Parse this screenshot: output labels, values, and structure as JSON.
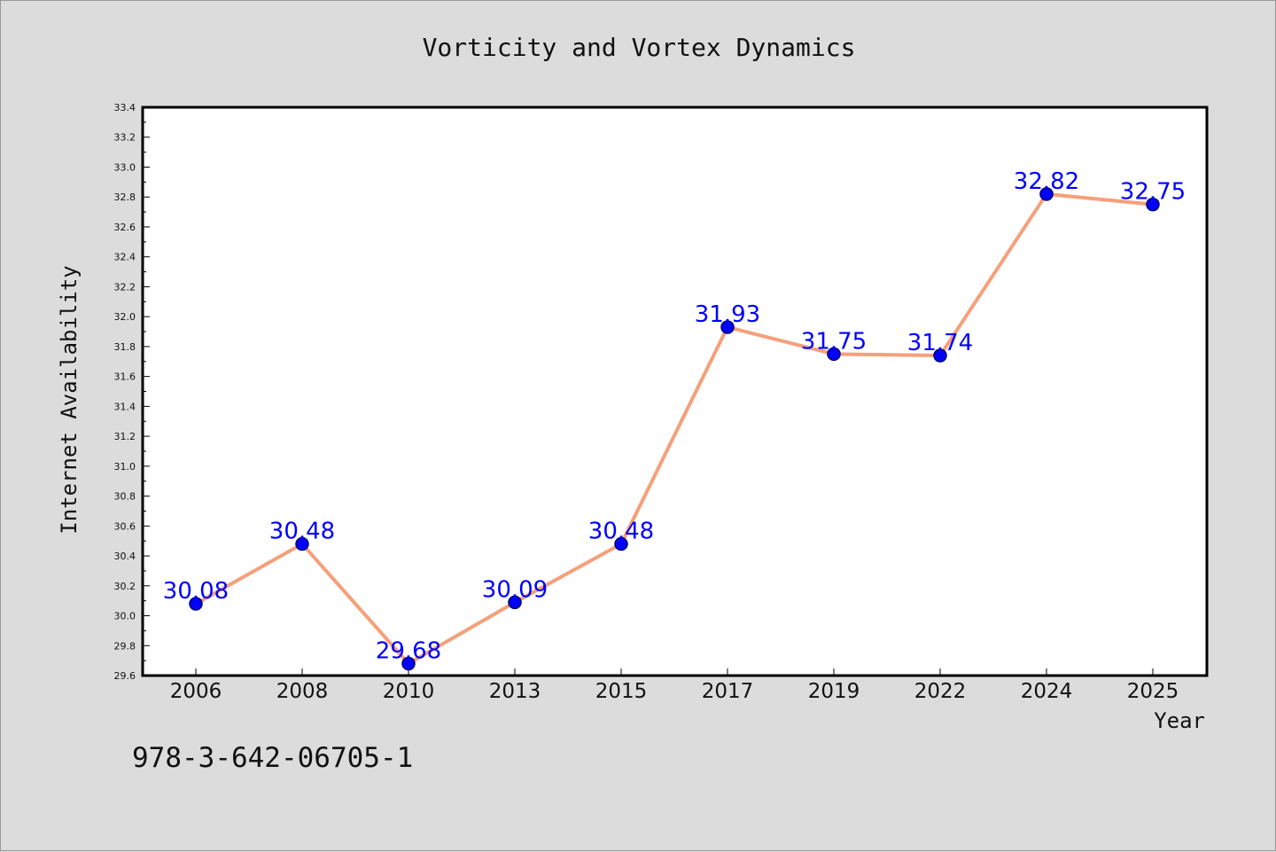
{
  "chart_data": {
    "type": "line",
    "title": "Vorticity and Vortex Dynamics",
    "xlabel": "Year",
    "ylabel": "Internet Availability",
    "categories": [
      "2006",
      "2008",
      "2010",
      "2013",
      "2015",
      "2017",
      "2019",
      "2022",
      "2024",
      "2025"
    ],
    "series": [
      {
        "values": [
          30.08,
          30.48,
          29.68,
          30.09,
          30.48,
          31.93,
          31.75,
          31.74,
          32.82,
          32.75
        ]
      }
    ],
    "data_labels": [
      "30.08",
      "30.48",
      "29.68",
      "30.09",
      "30.48",
      "31.93",
      "31.75",
      "31.74",
      "32.82",
      "32.75"
    ],
    "ylim": [
      29.6,
      33.4
    ],
    "yticks": [
      "29.6",
      "29.8",
      "30.0",
      "30.2",
      "30.4",
      "30.6",
      "30.8",
      "31.0",
      "31.2",
      "31.4",
      "31.6",
      "31.8",
      "32.0",
      "32.2",
      "32.4",
      "32.6",
      "32.8",
      "33.0",
      "33.2",
      "33.4"
    ],
    "grid": false,
    "legend": "none",
    "colors": {
      "line": "#f5a07a",
      "marker": "#0000ff",
      "marker_edge": "#00006a",
      "data_label": "#0000ff",
      "plot_background": "#ffffff",
      "figure_background": "#dcdcdc"
    }
  },
  "caption": "978-3-642-06705-1"
}
